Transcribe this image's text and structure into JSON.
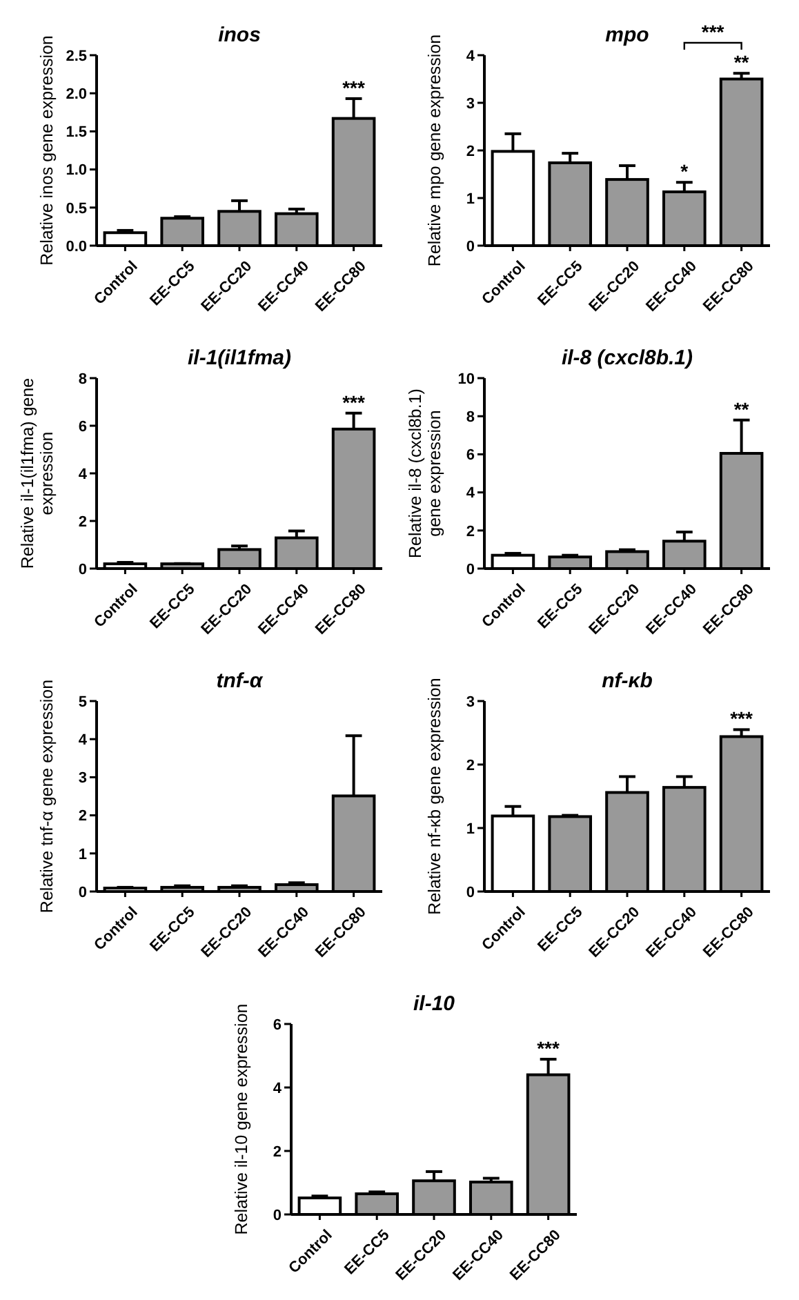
{
  "chart_data": [
    {
      "type": "bar",
      "title": "inos",
      "ylabel": "Relative inos gene expression",
      "categories": [
        "Control",
        "EE-CC5",
        "EE-CC20",
        "EE-CC40",
        "EE-CC80"
      ],
      "values": [
        0.17,
        0.36,
        0.45,
        0.42,
        1.67
      ],
      "colors": [
        "#ffffff",
        "#999999",
        "#999999",
        "#999999",
        "#999999"
      ],
      "errors": [
        [
          0.17,
          0.2
        ],
        [
          0.36,
          0.38
        ],
        [
          0.45,
          0.59
        ],
        [
          0.42,
          0.48
        ],
        [
          1.67,
          1.93
        ]
      ],
      "ylim": [
        0,
        2.5
      ],
      "yticks": [
        {
          "value": 0,
          "label": "0.0"
        },
        {
          "value": 0.5,
          "label": "0.5"
        },
        {
          "value": 1,
          "label": "1.0"
        },
        {
          "value": 1.5,
          "label": "1.5"
        },
        {
          "value": 2,
          "label": "2.0"
        },
        {
          "value": 2.5,
          "label": "2.5"
        }
      ],
      "annotations": [
        {
          "text": "***",
          "x": "EE-CC80",
          "y": 1.93
        }
      ]
    },
    {
      "type": "bar",
      "title": "mpo",
      "ylabel": "Relative mpo gene expression",
      "categories": [
        "Control",
        "EE-CC5",
        "EE-CC20",
        "EE-CC40",
        "EE-CC80"
      ],
      "values": [
        1.98,
        1.74,
        1.39,
        1.13,
        3.5
      ],
      "colors": [
        "#ffffff",
        "#999999",
        "#999999",
        "#999999",
        "#999999"
      ],
      "errors": [
        [
          1.98,
          2.35
        ],
        [
          1.74,
          1.94
        ],
        [
          1.39,
          1.68
        ],
        [
          1.13,
          1.33
        ],
        [
          3.5,
          3.62
        ]
      ],
      "ylim": [
        0,
        4
      ],
      "yticks": [
        0,
        1,
        2,
        3,
        4
      ],
      "annotations": [
        {
          "text": "*",
          "x": "EE-CC40",
          "y": 1.33
        },
        {
          "text": "**",
          "x": "EE-CC80",
          "y": 3.62
        },
        "***"
      ]
    },
    {
      "type": "bar",
      "title": "il-1(il1fma)",
      "ylabel": "Relative il-1(il1fma) gene\nexpression",
      "categories": [
        "Control",
        "EE-CC5",
        "EE-CC20",
        "EE-CC40",
        "EE-CC80"
      ],
      "values": [
        0.2,
        0.2,
        0.8,
        1.29,
        5.86
      ],
      "colors": [
        "#ffffff",
        "#999999",
        "#999999",
        "#999999",
        "#999999"
      ],
      "errors": [
        [
          0.2,
          0.26
        ],
        [
          0.2,
          0.21
        ],
        [
          0.8,
          0.95
        ],
        [
          1.29,
          1.58
        ],
        [
          5.86,
          6.53
        ]
      ],
      "ylim": [
        0,
        8
      ],
      "yticks": [
        0,
        2,
        4,
        6,
        8
      ],
      "annotations": [
        {
          "text": "***",
          "x": "EE-CC80",
          "y": 6.53
        }
      ]
    },
    {
      "type": "bar",
      "title": "il-8 (cxcl8b.1)",
      "ylabel": "Relative il-8 (cxcl8b.1)\ngene expression",
      "categories": [
        "Control",
        "EE-CC5",
        "EE-CC20",
        "EE-CC40",
        "EE-CC80"
      ],
      "values": [
        0.7,
        0.61,
        0.89,
        1.44,
        6.05
      ],
      "colors": [
        "#ffffff",
        "#999999",
        "#999999",
        "#999999",
        "#999999"
      ],
      "errors": [
        [
          0.7,
          0.8
        ],
        [
          0.61,
          0.7
        ],
        [
          0.89,
          0.99
        ],
        [
          1.44,
          1.92
        ],
        [
          6.05,
          7.8
        ]
      ],
      "ylim": [
        0,
        10
      ],
      "yticks": [
        0,
        2,
        4,
        6,
        8,
        10
      ],
      "annotations": [
        {
          "text": "**",
          "x": "EE-CC80",
          "y": 7.8
        }
      ]
    },
    {
      "type": "bar",
      "title": "tnf-α",
      "ylabel": "Relative tnf-α gene expression",
      "categories": [
        "Control",
        "EE-CC5",
        "EE-CC20",
        "EE-CC40",
        "EE-CC80"
      ],
      "values": [
        0.09,
        0.11,
        0.11,
        0.18,
        2.51
      ],
      "colors": [
        "#ffffff",
        "#999999",
        "#999999",
        "#999999",
        "#999999"
      ],
      "errors": [
        [
          0.09,
          0.11
        ],
        [
          0.11,
          0.15
        ],
        [
          0.11,
          0.15
        ],
        [
          0.18,
          0.23
        ],
        [
          2.51,
          4.09
        ]
      ],
      "ylim": [
        0,
        5
      ],
      "yticks": [
        0,
        1,
        2,
        3,
        4,
        5
      ]
    },
    {
      "type": "bar",
      "title": "nf-κb",
      "ylabel": "Relative nf-κb gene expression",
      "categories": [
        "Control",
        "EE-CC5",
        "EE-CC20",
        "EE-CC40",
        "EE-CC80"
      ],
      "values": [
        1.19,
        1.18,
        1.56,
        1.64,
        2.44
      ],
      "colors": [
        "#ffffff",
        "#999999",
        "#999999",
        "#999999",
        "#999999"
      ],
      "errors": [
        [
          1.19,
          1.34
        ],
        [
          1.18,
          1.2
        ],
        [
          1.56,
          1.81
        ],
        [
          1.64,
          1.81
        ],
        [
          2.44,
          2.55
        ]
      ],
      "ylim": [
        0,
        3
      ],
      "yticks": [
        0,
        1,
        2,
        3
      ],
      "annotations": [
        {
          "text": "***",
          "x": "EE-CC80",
          "y": 2.55
        }
      ]
    },
    {
      "type": "bar",
      "title": "il-10",
      "ylabel": "Relative il-10 gene expression",
      "categories": [
        "Control",
        "EE-CC5",
        "EE-CC20",
        "EE-CC40",
        "EE-CC80"
      ],
      "values": [
        0.52,
        0.65,
        1.06,
        1.02,
        4.4
      ],
      "colors": [
        "#ffffff",
        "#999999",
        "#999999",
        "#999999",
        "#999999"
      ],
      "errors": [
        [
          0.52,
          0.58
        ],
        [
          0.65,
          0.71
        ],
        [
          1.06,
          1.35
        ],
        [
          1.02,
          1.14
        ],
        [
          4.4,
          4.89
        ]
      ],
      "ylim": [
        0,
        6
      ],
      "yticks": [
        0,
        2,
        4,
        6
      ],
      "annotations": [
        {
          "text": "***",
          "x": "EE-CC80",
          "y": 4.89
        }
      ]
    }
  ]
}
